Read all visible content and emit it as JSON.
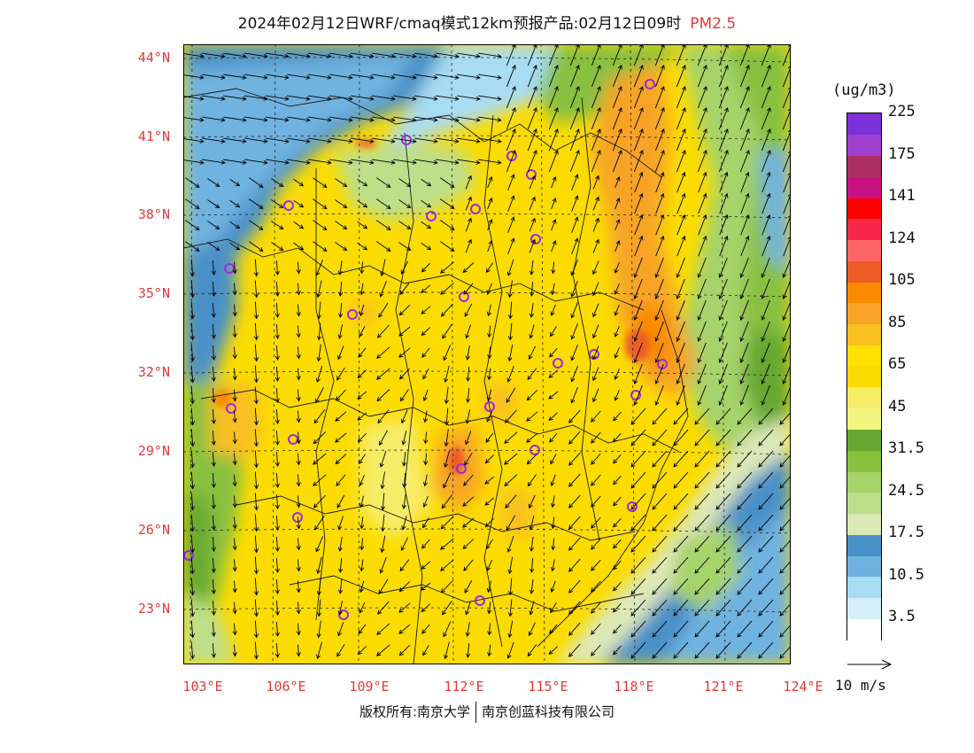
{
  "title": {
    "product": "2024年02月12日WRF/cmaq模式12km预报产品:02月12日09时",
    "variable": "PM2.5"
  },
  "lat_labels": [
    "44°N",
    "41°N",
    "38°N",
    "35°N",
    "32°N",
    "29°N",
    "26°N",
    "23°N"
  ],
  "lon_labels": [
    "103°E",
    "106°E",
    "109°E",
    "112°E",
    "115°E",
    "118°E",
    "121°E",
    "124°E"
  ],
  "legend": {
    "unit": "(ug/m3)",
    "colors": [
      "#ffffff",
      "#d6eefa",
      "#a8dcf3",
      "#6fb2e0",
      "#4a90c8",
      "#dde8b8",
      "#bede8a",
      "#a6d36a",
      "#88c040",
      "#66a832",
      "#f0f680",
      "#f6ec68",
      "#fcdc00",
      "#ffe000",
      "#f8c020",
      "#f7a428",
      "#f88b00",
      "#ee5c28",
      "#fe6666",
      "#f8284a",
      "#ff0000",
      "#c81282",
      "#aa3060",
      "#a040d0",
      "#7a32d8"
    ],
    "labels": [
      "3.5",
      "10.5",
      "17.5",
      "24.5",
      "31.5",
      "45",
      "65",
      "85",
      "105",
      "124",
      "141",
      "175",
      "225"
    ]
  },
  "wind_scale": {
    "label": "10 m/s"
  },
  "copyright": {
    "left": "版权所有:南京大学",
    "right": "南京创蓝科技有限公司"
  }
}
